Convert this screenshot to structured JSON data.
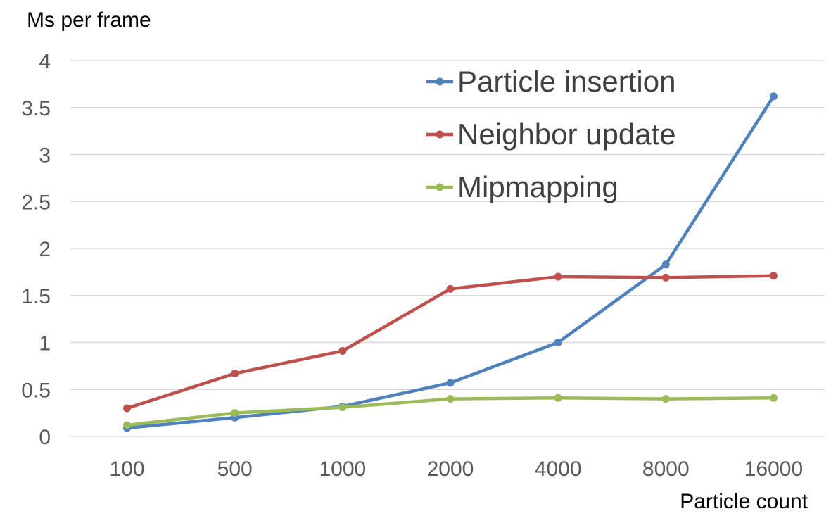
{
  "chart_data": {
    "type": "line",
    "ylabel": "Ms per frame",
    "xlabel": "Particle count",
    "categories": [
      "100",
      "500",
      "1000",
      "2000",
      "4000",
      "8000",
      "16000"
    ],
    "ylim": [
      0,
      4
    ],
    "yticks": [
      "0",
      "0.5",
      "1",
      "1.5",
      "2",
      "2.5",
      "3",
      "3.5",
      "4"
    ],
    "grid": true,
    "legend_position": "top-right",
    "series": [
      {
        "name": "Particle insertion",
        "color": "#4f81bd",
        "values": [
          0.09,
          0.2,
          0.32,
          0.57,
          1.0,
          1.83,
          3.62
        ]
      },
      {
        "name": "Neighbor update",
        "color": "#c0504d",
        "values": [
          0.3,
          0.67,
          0.91,
          1.57,
          1.7,
          1.69,
          1.71
        ]
      },
      {
        "name": "Mipmapping",
        "color": "#9bbb59",
        "values": [
          0.12,
          0.25,
          0.31,
          0.4,
          0.41,
          0.4,
          0.41
        ]
      }
    ]
  }
}
